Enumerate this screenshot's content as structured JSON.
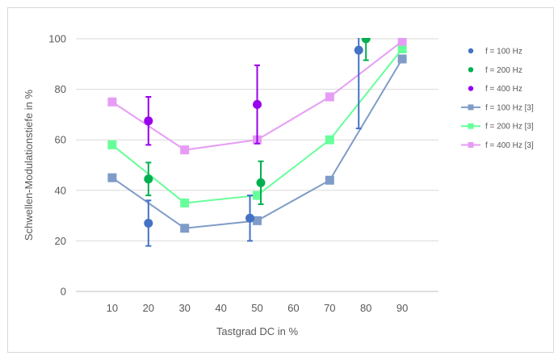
{
  "chart_data": {
    "type": "scatter",
    "xlabel": "Tastgrad DC in %",
    "ylabel": "Schwellen-Modulationstiefe in %",
    "xticks": [
      "10",
      "20",
      "30",
      "40",
      "50",
      "60",
      "70",
      "80",
      "90"
    ],
    "xlim": [
      0,
      100
    ],
    "ylim": [
      0,
      100
    ],
    "yticks": [
      0,
      20,
      40,
      60,
      80,
      100
    ],
    "grid": "horizontal",
    "legend_position": "right",
    "series": [
      {
        "name": "f = 100 Hz",
        "kind": "points",
        "color": "#4472c4",
        "x": [
          20,
          48,
          78
        ],
        "y": [
          27,
          29,
          95.5
        ],
        "err": [
          9,
          9,
          31
        ]
      },
      {
        "name": "f = 200 Hz",
        "kind": "points",
        "color": "#00b050",
        "x": [
          20,
          51,
          80
        ],
        "y": [
          44.5,
          43,
          100
        ],
        "err": [
          6.5,
          8.5,
          8.5
        ]
      },
      {
        "name": "f = 400 Hz",
        "kind": "points",
        "color": "#9900ee",
        "x": [
          20,
          50
        ],
        "y": [
          67.5,
          74
        ],
        "err": [
          9.5,
          15.5
        ]
      },
      {
        "name": "f = 100 Hz [3]",
        "kind": "line",
        "color": "#7f9cc8",
        "x": [
          10,
          30,
          50,
          70,
          90
        ],
        "y": [
          45,
          25,
          28,
          44,
          92
        ]
      },
      {
        "name": "f = 200 Hz [3]",
        "kind": "line",
        "color": "#66ff99",
        "x": [
          10,
          30,
          50,
          70,
          90
        ],
        "y": [
          58,
          35,
          38,
          60,
          96
        ]
      },
      {
        "name": "f = 400 Hz [3]",
        "kind": "line",
        "color": "#e69cf5",
        "x": [
          10,
          30,
          50,
          70,
          90
        ],
        "y": [
          75,
          56,
          60,
          77,
          99
        ]
      }
    ]
  }
}
